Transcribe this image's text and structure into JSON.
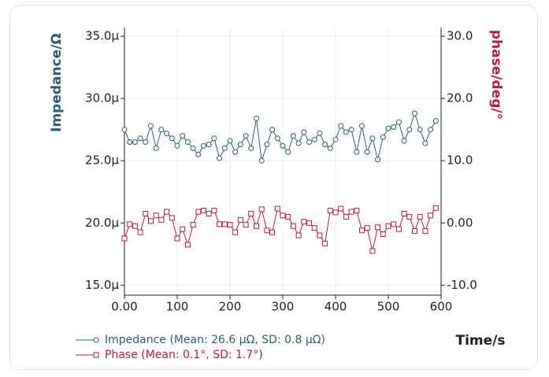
{
  "chart_data": {
    "type": "line",
    "y_label": "Impedance/Ω",
    "y2_label": "phase/deg/°",
    "x_label": "Time/s",
    "xlim": [
      0,
      600
    ],
    "xticks": [
      {
        "value": 0,
        "label": "0.00"
      },
      100,
      200,
      300,
      400,
      500,
      600
    ],
    "ylim": [
      1.42e-05,
      3.57e-05
    ],
    "yticks": [
      {
        "value": 1.5e-05,
        "label": "15.0μ"
      },
      {
        "value": 2e-05,
        "label": "20.0μ"
      },
      {
        "value": 2.5e-05,
        "label": "25.0μ"
      },
      {
        "value": 3e-05,
        "label": "30.0μ"
      },
      {
        "value": 3.5e-05,
        "label": "35.0μ"
      }
    ],
    "y2lim": [
      -11.6,
      31.4
    ],
    "y2ticks": [
      {
        "value": -10,
        "label": "-10.0"
      },
      {
        "value": 0,
        "label": "0.00"
      },
      {
        "value": 10,
        "label": "10.0"
      },
      {
        "value": 20,
        "label": "20.0"
      },
      {
        "value": 30,
        "label": "30.0"
      }
    ],
    "grid": true,
    "legend": "bottom-left",
    "x": [
      0,
      10,
      20,
      30,
      40,
      50,
      60,
      70,
      80,
      90,
      100,
      110,
      120,
      130,
      140,
      150,
      160,
      170,
      180,
      190,
      200,
      210,
      220,
      230,
      240,
      250,
      260,
      270,
      280,
      290,
      300,
      310,
      320,
      330,
      340,
      350,
      360,
      370,
      380,
      390,
      400,
      410,
      420,
      430,
      440,
      450,
      460,
      470,
      480,
      490,
      500,
      510,
      520,
      530,
      540,
      550,
      560,
      570,
      580,
      590
    ],
    "series": [
      {
        "name": "Impedance (Mean: 26.6 μΩ, SD: 0.8 μΩ)",
        "color": "#2f5d6e",
        "marker": "circle",
        "axis": "y",
        "values": [
          2.75e-05,
          2.65e-05,
          2.65e-05,
          2.68e-05,
          2.65e-05,
          2.78e-05,
          2.6e-05,
          2.75e-05,
          2.72e-05,
          2.68e-05,
          2.62e-05,
          2.7e-05,
          2.65e-05,
          2.6e-05,
          2.55e-05,
          2.62e-05,
          2.63e-05,
          2.68e-05,
          2.52e-05,
          2.6e-05,
          2.66e-05,
          2.57e-05,
          2.63e-05,
          2.7e-05,
          2.6e-05,
          2.84e-05,
          2.5e-05,
          2.63e-05,
          2.75e-05,
          2.68e-05,
          2.62e-05,
          2.57e-05,
          2.7e-05,
          2.64e-05,
          2.73e-05,
          2.65e-05,
          2.67e-05,
          2.72e-05,
          2.63e-05,
          2.6e-05,
          2.67e-05,
          2.78e-05,
          2.73e-05,
          2.75e-05,
          2.57e-05,
          2.78e-05,
          2.57e-05,
          2.68e-05,
          2.51e-05,
          2.69e-05,
          2.76e-05,
          2.77e-05,
          2.81e-05,
          2.66e-05,
          2.75e-05,
          2.88e-05,
          2.75e-05,
          2.64e-05,
          2.75e-05,
          2.82e-05
        ]
      },
      {
        "name": "Phase (Mean: 0.1°, SD: 1.7°)",
        "color": "#b3213a",
        "marker": "square",
        "axis": "y2",
        "values": [
          -2.5,
          -0.2,
          -0.5,
          -1.5,
          1.5,
          0.3,
          1.2,
          0.5,
          1.8,
          0.8,
          -2.5,
          -1.0,
          -3.5,
          -0.3,
          1.8,
          2.0,
          1.5,
          2.0,
          -0.2,
          -0.2,
          -0.3,
          -1.5,
          0.5,
          -0.3,
          1.5,
          -0.5,
          2.2,
          -1.2,
          -1.5,
          2.3,
          1.2,
          1.0,
          -0.5,
          -2.0,
          0.2,
          0.0,
          -0.8,
          -2.0,
          -3.3,
          2.0,
          1.7,
          2.3,
          1.0,
          1.8,
          2.0,
          -1.2,
          -0.8,
          -4.5,
          -0.7,
          -1.8,
          -0.5,
          -0.2,
          -1.0,
          1.5,
          1.0,
          -1.3,
          1.0,
          -1.3,
          1.2,
          2.4
        ]
      }
    ]
  }
}
